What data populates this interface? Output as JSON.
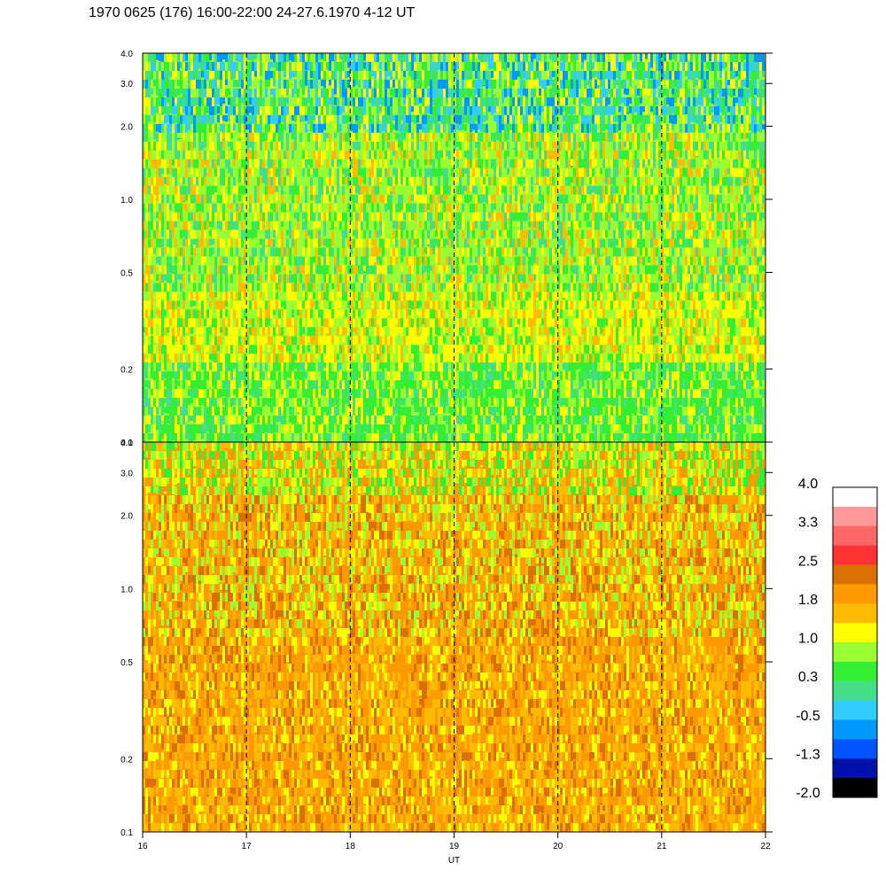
{
  "title": "1970 0625 (176) 16:00-22:00 24-27.6.1970  4-12 UT",
  "chart_data": [
    {
      "type": "heatmap",
      "panel": "upper",
      "xlim": [
        16,
        22
      ],
      "ylim": [
        0.1,
        4.0
      ],
      "y_scale": "log",
      "y_ticks": [
        "0.1",
        "0.2",
        "0.5",
        "1.0",
        "2.0",
        "3.0",
        "4.0"
      ],
      "hour_markers": [
        17,
        18,
        19,
        20,
        21
      ],
      "dominant_levels": [
        "green",
        "yellow",
        "cyan"
      ]
    },
    {
      "type": "heatmap",
      "panel": "lower",
      "xlim": [
        16,
        22
      ],
      "ylim": [
        0.1,
        4.0
      ],
      "y_scale": "log",
      "y_ticks": [
        "0.1",
        "0.2",
        "0.5",
        "1.0",
        "2.0",
        "3.0",
        "4.0"
      ],
      "x_ticks": [
        "16",
        "17",
        "18",
        "19",
        "20",
        "21",
        "22"
      ],
      "xlabel": "UT",
      "hour_markers": [
        17,
        18,
        19,
        20,
        21
      ],
      "dominant_levels": [
        "orange",
        "yellow",
        "dark-orange"
      ]
    }
  ],
  "colorbar": {
    "labels": [
      "4.0",
      "3.3",
      "2.5",
      "1.8",
      "1.0",
      "0.3",
      "-0.5",
      "-1.3",
      "-2.0"
    ],
    "colors": [
      "#ffffff",
      "#ff9999",
      "#ff6666",
      "#ff3333",
      "#d97000",
      "#ff9900",
      "#ffbb00",
      "#ffff00",
      "#99ff33",
      "#33ee33",
      "#44dd88",
      "#33ccff",
      "#0099ff",
      "#0055ff",
      "#0011aa",
      "#000000"
    ]
  }
}
